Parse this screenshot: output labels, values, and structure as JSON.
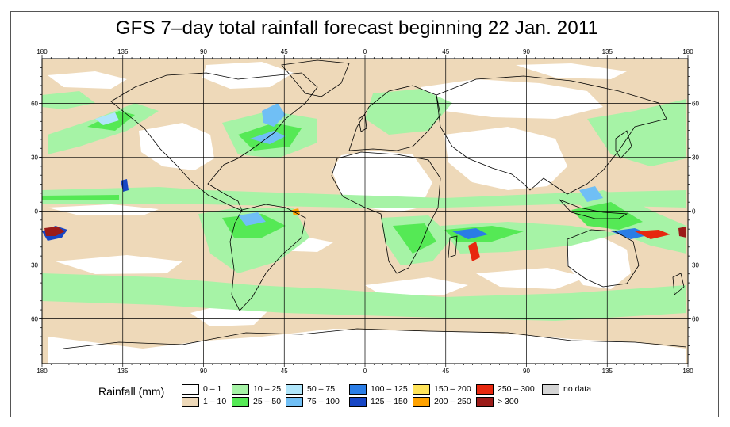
{
  "title": "GFS 7–day total rainfall forecast beginning 22 Jan. 2011",
  "axes": {
    "lon_ticks": [
      {
        "lon": -180,
        "label": "180"
      },
      {
        "lon": -135,
        "label": "135"
      },
      {
        "lon": -90,
        "label": "90"
      },
      {
        "lon": -45,
        "label": "45"
      },
      {
        "lon": 0,
        "label": "0"
      },
      {
        "lon": 45,
        "label": "45"
      },
      {
        "lon": 90,
        "label": "90"
      },
      {
        "lon": 135,
        "label": "135"
      },
      {
        "lon": 180,
        "label": "180"
      }
    ],
    "lat_ticks": [
      {
        "lat": 60,
        "label": "60"
      },
      {
        "lat": 30,
        "label": "30"
      },
      {
        "lat": 0,
        "label": "0"
      },
      {
        "lat": -30,
        "label": "30"
      },
      {
        "lat": -60,
        "label": "60"
      }
    ],
    "lon_range": [
      -180,
      180
    ],
    "lat_range": [
      -85,
      85
    ],
    "grid": true
  },
  "legend": {
    "title": "Rainfall (mm)",
    "items": [
      {
        "label": "0 – 1",
        "color": "#ffffff"
      },
      {
        "label": "1 – 10",
        "color": "#eed9b9"
      },
      {
        "label": "10 – 25",
        "color": "#a6f3a6"
      },
      {
        "label": "25 – 50",
        "color": "#55e955"
      },
      {
        "label": "50 – 75",
        "color": "#b0e6fb"
      },
      {
        "label": "75 – 100",
        "color": "#70bff5"
      },
      {
        "label": "100 – 125",
        "color": "#2a7de6"
      },
      {
        "label": "125 – 150",
        "color": "#1746c5"
      },
      {
        "label": "150 – 200",
        "color": "#ffe45a"
      },
      {
        "label": "200 – 250",
        "color": "#ffa200"
      },
      {
        "label": "250 – 300",
        "color": "#e7280f"
      },
      {
        "label": "> 300",
        "color": "#9b1b19"
      },
      {
        "label": "no data",
        "color": "#d4d4d4"
      }
    ]
  },
  "background_color": "#eed9b9"
}
